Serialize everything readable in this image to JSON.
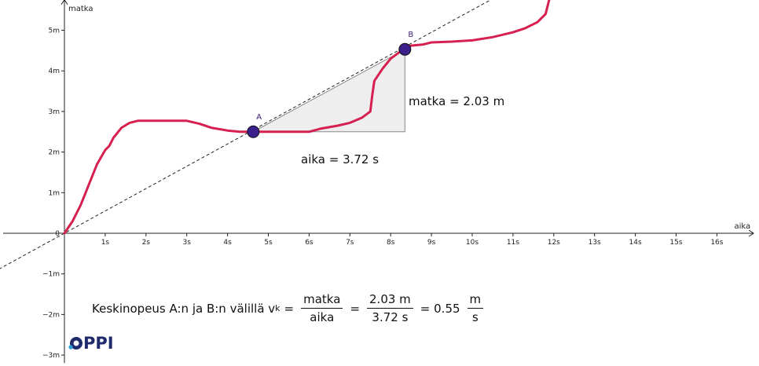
{
  "chart_data": {
    "type": "line",
    "xlabel": "aika",
    "ylabel": "matka",
    "xlim": [
      0,
      16.9
    ],
    "ylim": [
      -3.1,
      5.75
    ],
    "x_ticks": [
      1,
      2,
      3,
      4,
      5,
      6,
      7,
      8,
      9,
      10,
      11,
      12,
      13,
      14,
      15,
      16
    ],
    "x_tick_labels": [
      "1s",
      "2s",
      "3s",
      "4s",
      "5s",
      "6s",
      "7s",
      "8s",
      "9s",
      "10s",
      "11s",
      "12s",
      "13s",
      "14s",
      "15s",
      "16s"
    ],
    "y_ticks": [
      -3,
      -2,
      -1,
      1,
      2,
      3,
      4,
      5
    ],
    "y_tick_labels": [
      "−3m",
      "−2m",
      "−1m",
      "1m",
      "2m",
      "3m",
      "4m",
      "5m"
    ],
    "origin_label": "0",
    "grid": false,
    "series": [
      {
        "color": "#d6204f",
        "x": [
          0,
          0.2,
          0.4,
          0.6,
          0.8,
          1.0,
          1.1,
          1.2,
          1.4,
          1.6,
          1.8,
          2.0,
          2.5,
          3.0,
          3.3,
          3.6,
          4.0,
          4.3,
          4.63,
          5.0,
          5.5,
          6.0,
          6.3,
          6.7,
          7.0,
          7.3,
          7.5,
          7.55,
          7.6,
          7.8,
          8.0,
          8.2,
          8.35,
          8.5,
          8.8,
          9.0,
          9.5,
          10.0,
          10.5,
          11.0,
          11.3,
          11.6,
          11.8,
          11.85,
          11.9
        ],
        "y": [
          0,
          0.3,
          0.7,
          1.2,
          1.7,
          2.05,
          2.15,
          2.35,
          2.6,
          2.72,
          2.77,
          2.77,
          2.77,
          2.77,
          2.7,
          2.6,
          2.53,
          2.5,
          2.5,
          2.5,
          2.5,
          2.5,
          2.58,
          2.65,
          2.72,
          2.85,
          3.0,
          3.4,
          3.75,
          4.05,
          4.3,
          4.45,
          4.53,
          4.62,
          4.65,
          4.7,
          4.72,
          4.75,
          4.83,
          4.95,
          5.05,
          5.2,
          5.4,
          5.6,
          5.8
        ]
      },
      {
        "name": "",
        "style": "dashed",
        "color": "#222222",
        "slope": 0.55,
        "intercept": 0
      }
    ],
    "points": [
      {
        "label": "A",
        "x": 4.63,
        "y": 2.5
      },
      {
        "label": "B",
        "x": 8.35,
        "y": 4.53
      }
    ],
    "annotations": {
      "delta_y": "matka = 2.03 m",
      "delta_x": "aika = 3.72 s"
    },
    "colors": {
      "curve": "#d6204f",
      "point_fill": "#3b1f8a",
      "triangle_fill": "#eeeeee"
    }
  },
  "formula": {
    "prefix": "Keskinopeus A:n ja B:n välillä v",
    "subscript": "k",
    "eq1": "=",
    "frac1_num": "matka",
    "frac1_den": "aika",
    "eq2": "=",
    "frac2_num": "2.03 m",
    "frac2_den": "3.72 s",
    "eq3": "= 0.55",
    "frac3_num": "m",
    "frac3_den": "s"
  },
  "logo": {
    "text": "PPI"
  }
}
